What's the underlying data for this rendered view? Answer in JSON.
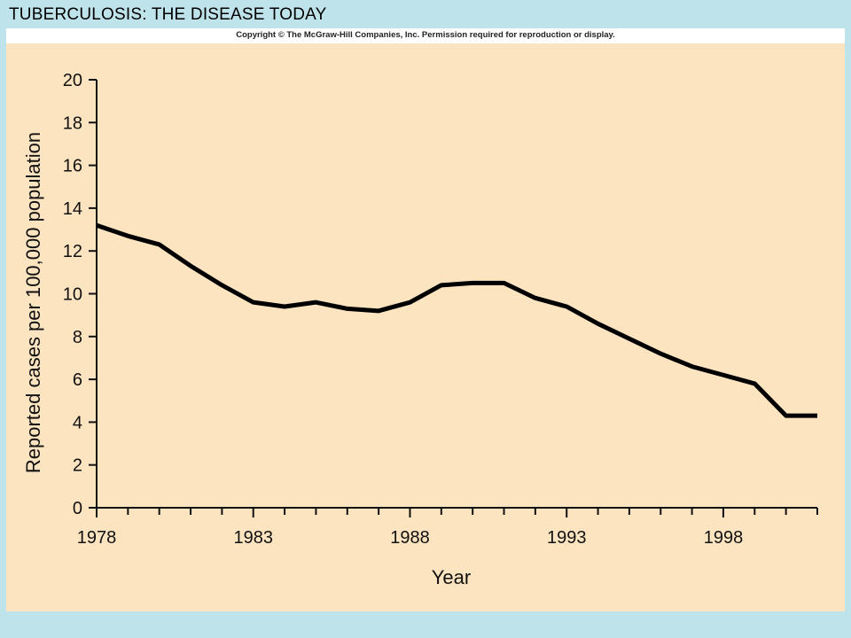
{
  "slide": {
    "title": "TUBERCULOSIS: THE DISEASE TODAY",
    "copyright": "Copyright © The McGraw-Hill Companies, Inc. Permission required for reproduction or display.",
    "background_color": "#bfe3ea",
    "plot_background_color": "#fde4c0"
  },
  "chart_data": {
    "type": "line",
    "title": "",
    "xlabel": "Year",
    "ylabel": "Reported cases per 100,000 population",
    "xlim": [
      1978,
      2001
    ],
    "ylim": [
      0,
      20
    ],
    "x_ticks": [
      "1978",
      "1983",
      "1988",
      "1993",
      "1998"
    ],
    "y_ticks": [
      "0",
      "2",
      "4",
      "6",
      "8",
      "10",
      "12",
      "14",
      "16",
      "18",
      "20"
    ],
    "grid": false,
    "line_color": "#000000",
    "series": [
      {
        "x": [
          1978,
          1979,
          1980,
          1981,
          1982,
          1983,
          1984,
          1985,
          1986,
          1987,
          1988,
          1989,
          1990,
          1991,
          1992,
          1993,
          1994,
          1995,
          1996,
          1997,
          1998,
          1999,
          2000,
          2001
        ],
        "values": [
          13.2,
          12.7,
          12.3,
          11.3,
          10.4,
          9.6,
          9.4,
          9.6,
          9.3,
          9.2,
          9.6,
          10.4,
          10.5,
          10.5,
          9.8,
          9.4,
          8.6,
          7.9,
          7.2,
          6.6,
          6.2,
          5.8,
          4.3,
          4.3
        ]
      }
    ]
  }
}
